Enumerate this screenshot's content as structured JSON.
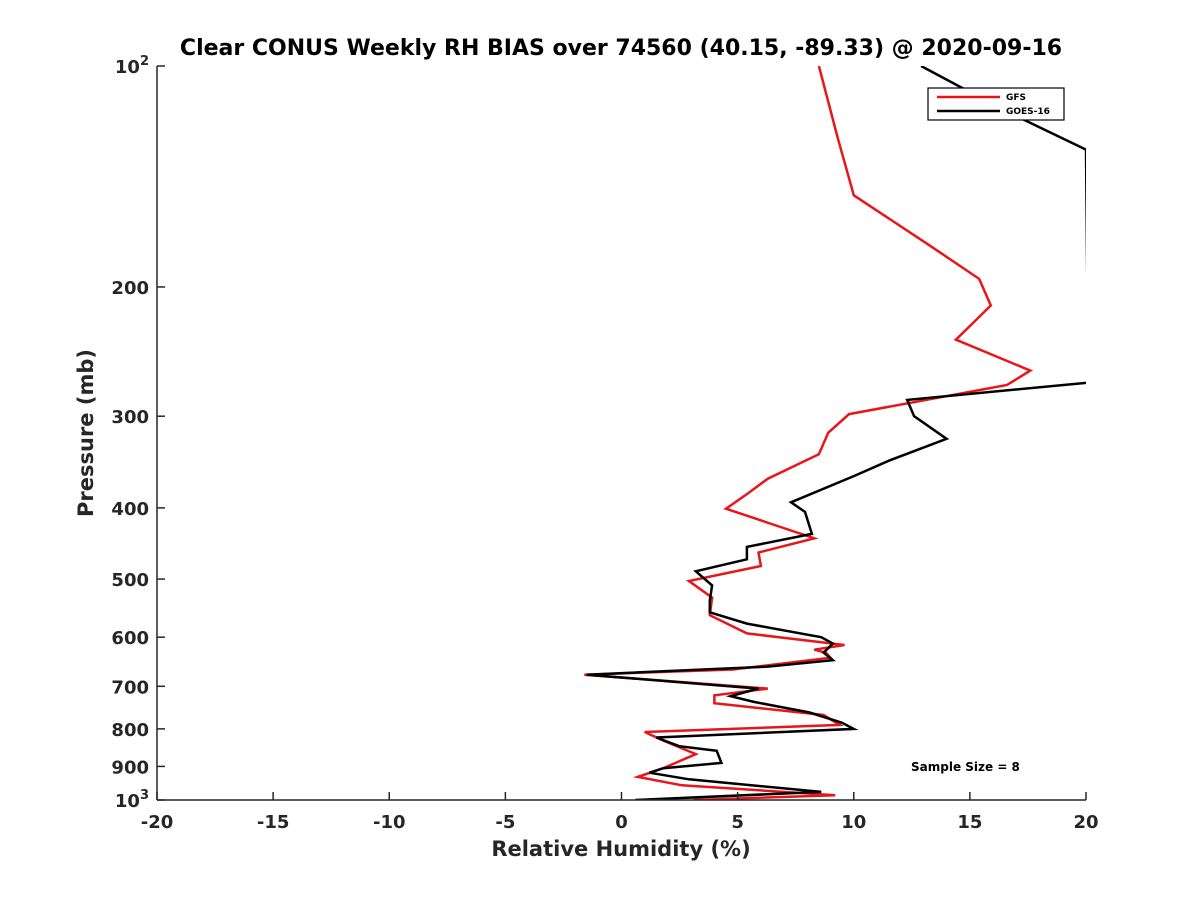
{
  "chart_data": {
    "type": "line",
    "title": "Clear CONUS Weekly RH BIAS over 74560 (40.15, -89.33) @ 2020-09-16",
    "xlabel": "Relative Humidity (%)",
    "ylabel": "Pressure (mb)",
    "xlim": [
      -20,
      20
    ],
    "ylim": [
      100,
      1000
    ],
    "yscale": "log",
    "y_reversed": true,
    "x_ticks": [
      "-20",
      "-15",
      "-10",
      "-5",
      "0",
      "5",
      "10",
      "15",
      "20"
    ],
    "y_ticks": [
      {
        "value": 100,
        "base": "10",
        "exp": "2"
      },
      {
        "value": 200,
        "label": "200"
      },
      {
        "value": 300,
        "label": "300"
      },
      {
        "value": 400,
        "label": "400"
      },
      {
        "value": 500,
        "label": "500"
      },
      {
        "value": 600,
        "label": "600"
      },
      {
        "value": 700,
        "label": "700"
      },
      {
        "value": 800,
        "label": "800"
      },
      {
        "value": 900,
        "label": "900"
      },
      {
        "value": 1000,
        "base": "10",
        "exp": "3"
      }
    ],
    "grid": false,
    "legend_position": "top-right",
    "series": [
      {
        "name": "GFS",
        "color": "#e8161b",
        "points": [
          [
            8.5,
            100
          ],
          [
            9.3,
            125
          ],
          [
            10.0,
            150
          ],
          [
            13.2,
            175
          ],
          [
            15.4,
            195
          ],
          [
            15.9,
            212
          ],
          [
            14.4,
            236
          ],
          [
            17.6,
            260
          ],
          [
            16.6,
            272
          ],
          [
            9.8,
            298
          ],
          [
            8.9,
            316
          ],
          [
            8.5,
            338
          ],
          [
            6.3,
            365
          ],
          [
            5.4,
            383
          ],
          [
            4.5,
            401
          ],
          [
            6.4,
            420
          ],
          [
            8.3,
            440
          ],
          [
            5.9,
            460
          ],
          [
            6.0,
            480
          ],
          [
            2.9,
            503
          ],
          [
            3.9,
            530
          ],
          [
            3.8,
            560
          ],
          [
            5.4,
            593
          ],
          [
            9.6,
            615
          ],
          [
            8.3,
            624
          ],
          [
            8.8,
            630
          ],
          [
            9.0,
            640
          ],
          [
            4.8,
            664
          ],
          [
            -1.6,
            675
          ],
          [
            6.3,
            705
          ],
          [
            4.0,
            720
          ],
          [
            4.0,
            738
          ],
          [
            8.7,
            766
          ],
          [
            9.4,
            790
          ],
          [
            1.0,
            808
          ],
          [
            1.8,
            830
          ],
          [
            3.2,
            866
          ],
          [
            1.8,
            905
          ],
          [
            0.7,
            930
          ],
          [
            2.6,
            955
          ],
          [
            9.2,
            985
          ],
          [
            3.1,
            1000
          ]
        ]
      },
      {
        "name": "GOES-16",
        "color": "#000000",
        "points": [
          [
            12.9,
            100
          ],
          [
            16.5,
            115
          ],
          [
            20.0,
            130
          ],
          [
            20.1,
            270
          ],
          [
            12.3,
            285
          ],
          [
            12.6,
            300
          ],
          [
            14.0,
            322
          ],
          [
            11.5,
            345
          ],
          [
            10.0,
            362
          ],
          [
            7.3,
            393
          ],
          [
            7.9,
            405
          ],
          [
            8.2,
            434
          ],
          [
            5.4,
            452
          ],
          [
            5.4,
            470
          ],
          [
            3.2,
            488
          ],
          [
            3.9,
            510
          ],
          [
            3.8,
            535
          ],
          [
            3.8,
            555
          ],
          [
            5.4,
            575
          ],
          [
            8.6,
            600
          ],
          [
            9.1,
            612
          ],
          [
            8.7,
            630
          ],
          [
            9.1,
            645
          ],
          [
            6.3,
            658
          ],
          [
            -1.5,
            675
          ],
          [
            5.9,
            705
          ],
          [
            4.7,
            722
          ],
          [
            5.7,
            735
          ],
          [
            8.1,
            760
          ],
          [
            9.5,
            785
          ],
          [
            10.0,
            800
          ],
          [
            1.5,
            822
          ],
          [
            2.5,
            845
          ],
          [
            4.1,
            857
          ],
          [
            4.3,
            890
          ],
          [
            1.8,
            905
          ],
          [
            1.2,
            918
          ],
          [
            2.9,
            937
          ],
          [
            8.6,
            975
          ],
          [
            0.6,
            1000
          ]
        ]
      }
    ],
    "annotations": [
      "Sample Size = 8"
    ]
  }
}
